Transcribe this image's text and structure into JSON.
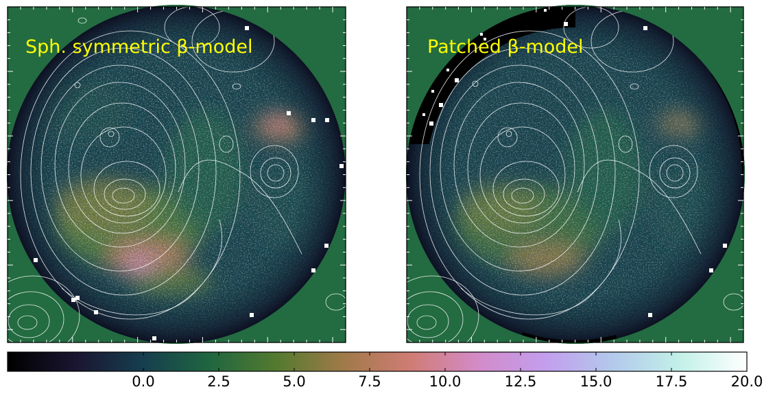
{
  "chart_data": [
    {
      "type": "heatmap",
      "title": "Sph. symmetric β-model",
      "overlay": "white contours",
      "masked_region": "none",
      "point_sources": 14
    },
    {
      "type": "heatmap",
      "title": "Patched β-model",
      "overlay": "white contours",
      "masked_region": "upper-left arc",
      "point_sources": 14
    }
  ],
  "colorbar": {
    "colormap": "cubehelix",
    "vmin": -4.5,
    "vmax": 20.0,
    "tick_values": [
      0.0,
      2.5,
      5.0,
      7.5,
      10.0,
      12.5,
      15.0,
      17.5,
      20.0
    ],
    "tick_labels": [
      "0.0",
      "2.5",
      "5.0",
      "7.5",
      "10.0",
      "12.5",
      "15.0",
      "17.5",
      "20.0"
    ],
    "colors": [
      "#000000",
      "#1a1530",
      "#163d4e",
      "#1f6640",
      "#547a2f",
      "#a07a49",
      "#d07c75",
      "#d38bc8",
      "#c29eed",
      "#b3c9ec",
      "#c2f0e8",
      "#ffffff"
    ]
  },
  "panels": {
    "left_title": "Sph. symmetric β-model",
    "right_title": "Patched β-model",
    "background": "#236b41"
  }
}
